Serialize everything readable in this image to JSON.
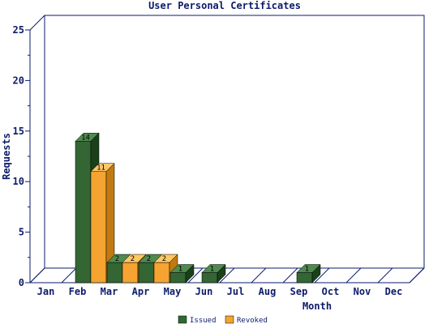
{
  "chart_data": {
    "type": "bar",
    "title": "User Personal Certificates",
    "xlabel": "Month",
    "ylabel": "Requests",
    "categories": [
      "Jan",
      "Feb",
      "Mar",
      "Apr",
      "May",
      "Jun",
      "Jul",
      "Aug",
      "Sep",
      "Oct",
      "Nov",
      "Dec"
    ],
    "series": [
      {
        "name": "Issued",
        "values": [
          0,
          14,
          2,
          2,
          1,
          1,
          0,
          0,
          1,
          0,
          0,
          0
        ],
        "color": "#336633",
        "top_color": "#4f8a4f",
        "side_color": "#1a401a"
      },
      {
        "name": "Revoked",
        "values": [
          0,
          11,
          2,
          2,
          0,
          0,
          0,
          0,
          0,
          0,
          0,
          0
        ],
        "color": "#f5a331",
        "top_color": "#ffc766",
        "side_color": "#c07a10"
      }
    ],
    "ylim": [
      0,
      25
    ],
    "yticks": [
      0,
      5,
      10,
      15,
      20,
      25
    ],
    "legend_position": "bottom-center",
    "colors": {
      "axis": "#0d1b6b",
      "text": "#0d1b6b"
    }
  }
}
